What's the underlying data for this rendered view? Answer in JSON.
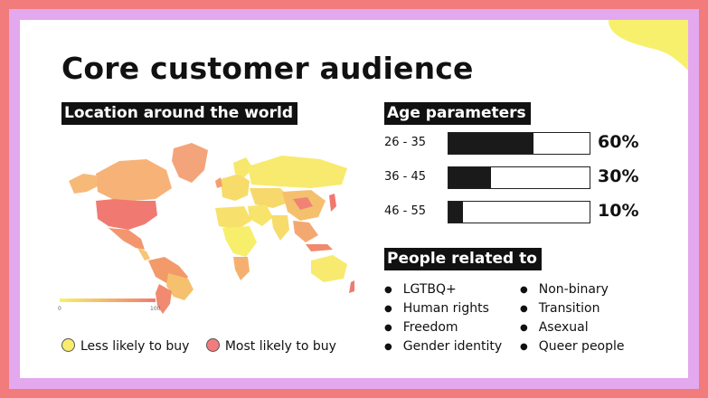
{
  "title": "Core customer audience",
  "location": {
    "heading": "Location around the world",
    "scale_min": "0",
    "scale_max": "100",
    "legend": [
      {
        "label": "Less likely to buy",
        "color": "#f7ec6e"
      },
      {
        "label": "Most likely to buy",
        "color": "#f27c7c"
      }
    ]
  },
  "age": {
    "heading": "Age parameters",
    "rows": [
      {
        "range": "26 - 35",
        "percent_label": "60%",
        "value": 60
      },
      {
        "range": "36 - 45",
        "percent_label": "30%",
        "value": 30
      },
      {
        "range": "46 - 55",
        "percent_label": "10%",
        "value": 10
      }
    ]
  },
  "people": {
    "heading": "People related to",
    "col_a": [
      "LGTBQ+",
      "Human rights",
      "Freedom",
      "Gender identity"
    ],
    "col_b": [
      "Non-binary",
      "Transition",
      "Asexual",
      "Queer people"
    ]
  },
  "colors": {
    "outer_frame": "#f27c7c",
    "inner_frame": "#e4a8ee",
    "corner_blob": "#f7f06c",
    "bar_fill": "#1a1a1a"
  }
}
